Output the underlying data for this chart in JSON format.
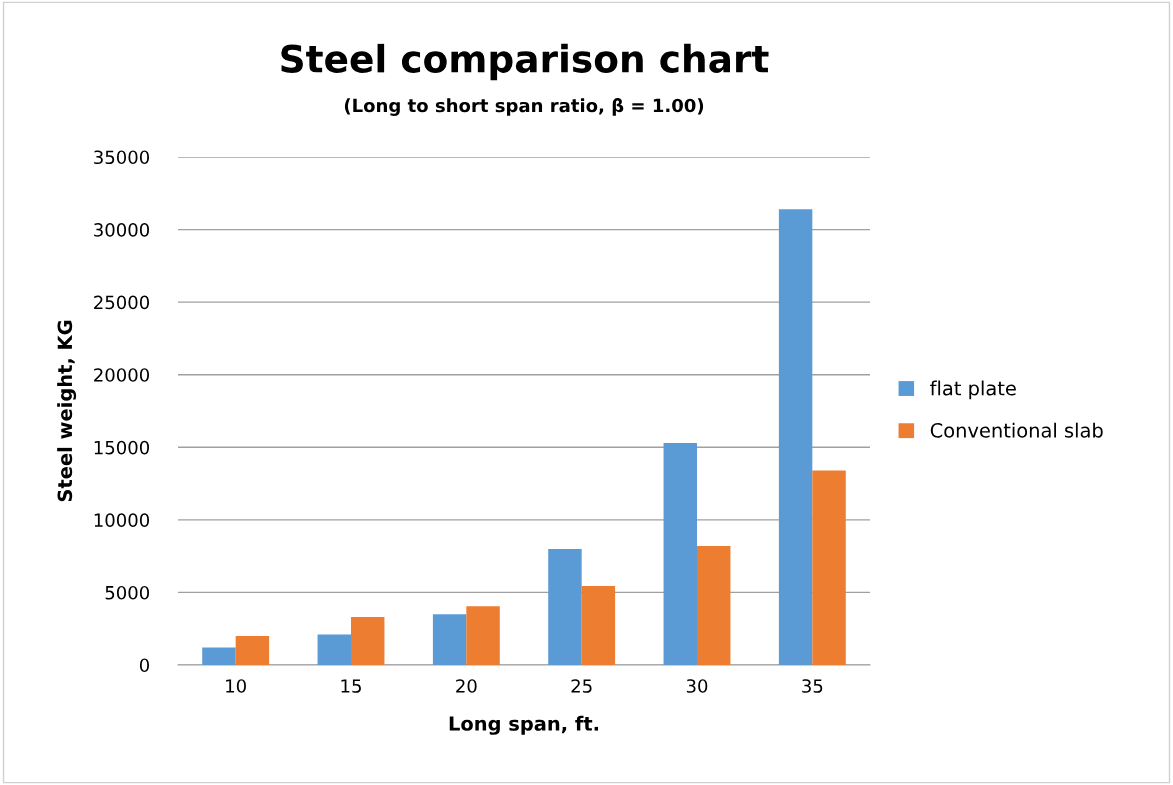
{
  "chart_data": {
    "type": "bar",
    "title": "Steel comparison chart",
    "subtitle": "(Long to short span ratio, β = 1.00)",
    "xlabel": "Long span, ft.",
    "ylabel": "Steel weight, KG",
    "categories": [
      "10",
      "15",
      "20",
      "25",
      "30",
      "35"
    ],
    "series": [
      {
        "name": "flat plate",
        "color": "#5b9bd5",
        "values": [
          1200,
          2100,
          3500,
          8000,
          15300,
          31400
        ]
      },
      {
        "name": "Conventional slab",
        "color": "#ed7d31",
        "values": [
          2000,
          3300,
          4050,
          5450,
          8200,
          13400
        ]
      }
    ],
    "ylim": [
      0,
      35000
    ],
    "yticks": [
      0,
      5000,
      10000,
      15000,
      20000,
      25000,
      30000,
      35000
    ],
    "grid": "y",
    "legend": "right"
  }
}
